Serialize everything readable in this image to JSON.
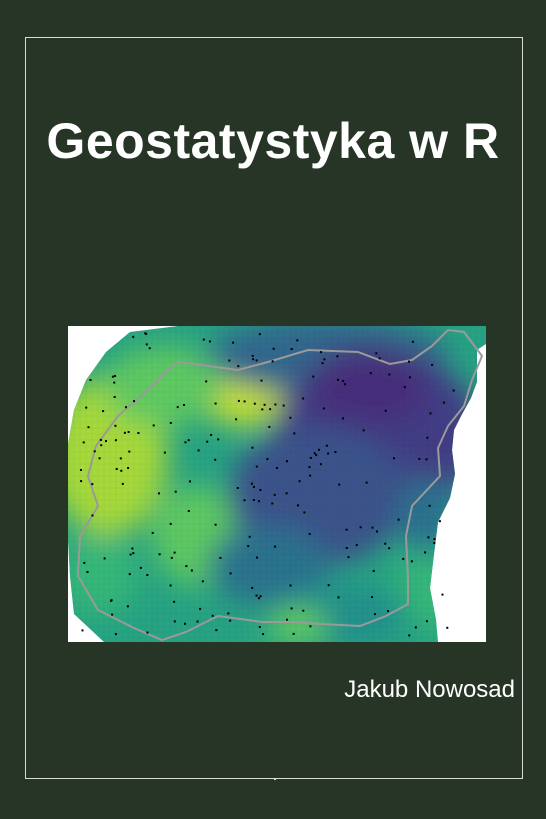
{
  "cover": {
    "title": "Geostatystyka w R",
    "author": "Jakub Nowosad",
    "background_color": "#263526",
    "frame_color": "#d9dcd6"
  },
  "map_image": {
    "description_icon": "raster-map-image",
    "palette": [
      "#440154",
      "#3b528b",
      "#21918c",
      "#5ec962",
      "#bddf26",
      "#fde725"
    ],
    "boundary_color": "#9a9a9a",
    "point_color": "#000000"
  }
}
